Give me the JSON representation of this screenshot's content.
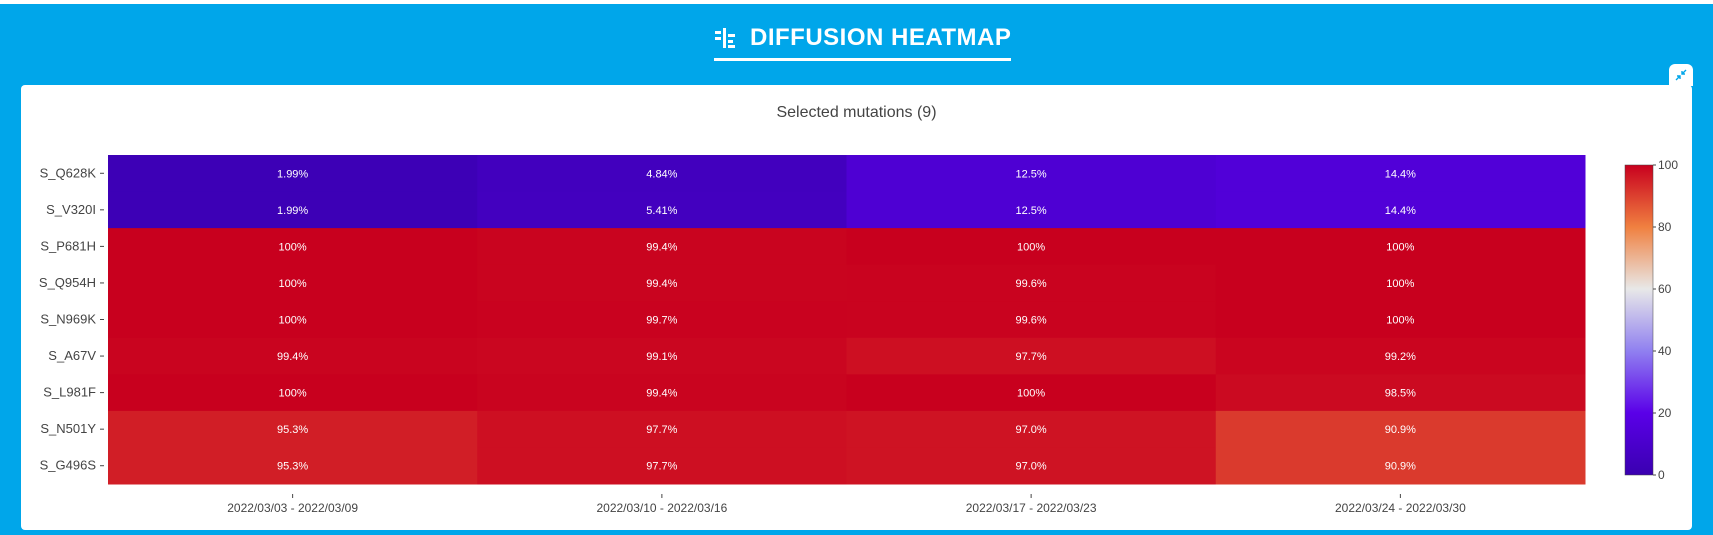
{
  "header": {
    "title": "DIFFUSION HEATMAP",
    "icon": "heatmap-sort-icon"
  },
  "panel": {
    "collapse_icon": "collapse-arrows-icon"
  },
  "chart_data": {
    "type": "heatmap",
    "title": "Selected mutations (9)",
    "xlabel": "",
    "ylabel": "",
    "x_categories": [
      "2022/03/03 - 2022/03/09",
      "2022/03/10 - 2022/03/16",
      "2022/03/17 - 2022/03/23",
      "2022/03/24 - 2022/03/30"
    ],
    "y_categories": [
      "S_Q628K",
      "S_V320I",
      "S_P681H",
      "S_Q954H",
      "S_N969K",
      "S_A67V",
      "S_L981F",
      "S_N501Y",
      "S_G496S"
    ],
    "values": [
      [
        1.99,
        4.84,
        12.5,
        14.4
      ],
      [
        1.99,
        5.41,
        12.5,
        14.4
      ],
      [
        100,
        99.4,
        100,
        100
      ],
      [
        100,
        99.4,
        99.6,
        100
      ],
      [
        100,
        99.7,
        99.6,
        100
      ],
      [
        99.4,
        99.1,
        97.7,
        99.2
      ],
      [
        100,
        99.4,
        100,
        98.5
      ],
      [
        95.3,
        97.7,
        97.0,
        90.9
      ],
      [
        95.3,
        97.7,
        97.0,
        90.9
      ]
    ],
    "labels": [
      [
        "1.99%",
        "4.84%",
        "12.5%",
        "14.4%"
      ],
      [
        "1.99%",
        "5.41%",
        "12.5%",
        "14.4%"
      ],
      [
        "100%",
        "99.4%",
        "100%",
        "100%"
      ],
      [
        "100%",
        "99.4%",
        "99.6%",
        "100%"
      ],
      [
        "100%",
        "99.7%",
        "99.6%",
        "100%"
      ],
      [
        "99.4%",
        "99.1%",
        "97.7%",
        "99.2%"
      ],
      [
        "100%",
        "99.4%",
        "100%",
        "98.5%"
      ],
      [
        "95.3%",
        "97.7%",
        "97.0%",
        "90.9%"
      ],
      [
        "95.3%",
        "97.7%",
        "97.0%",
        "90.9%"
      ]
    ],
    "colorbar": {
      "range": [
        0,
        100
      ],
      "ticks": [
        0,
        20,
        40,
        60,
        80,
        100
      ],
      "colors": [
        "#3a00b0",
        "#5a00e8",
        "#9080f0",
        "#e8e8e8",
        "#f08040",
        "#c8001e"
      ]
    }
  }
}
